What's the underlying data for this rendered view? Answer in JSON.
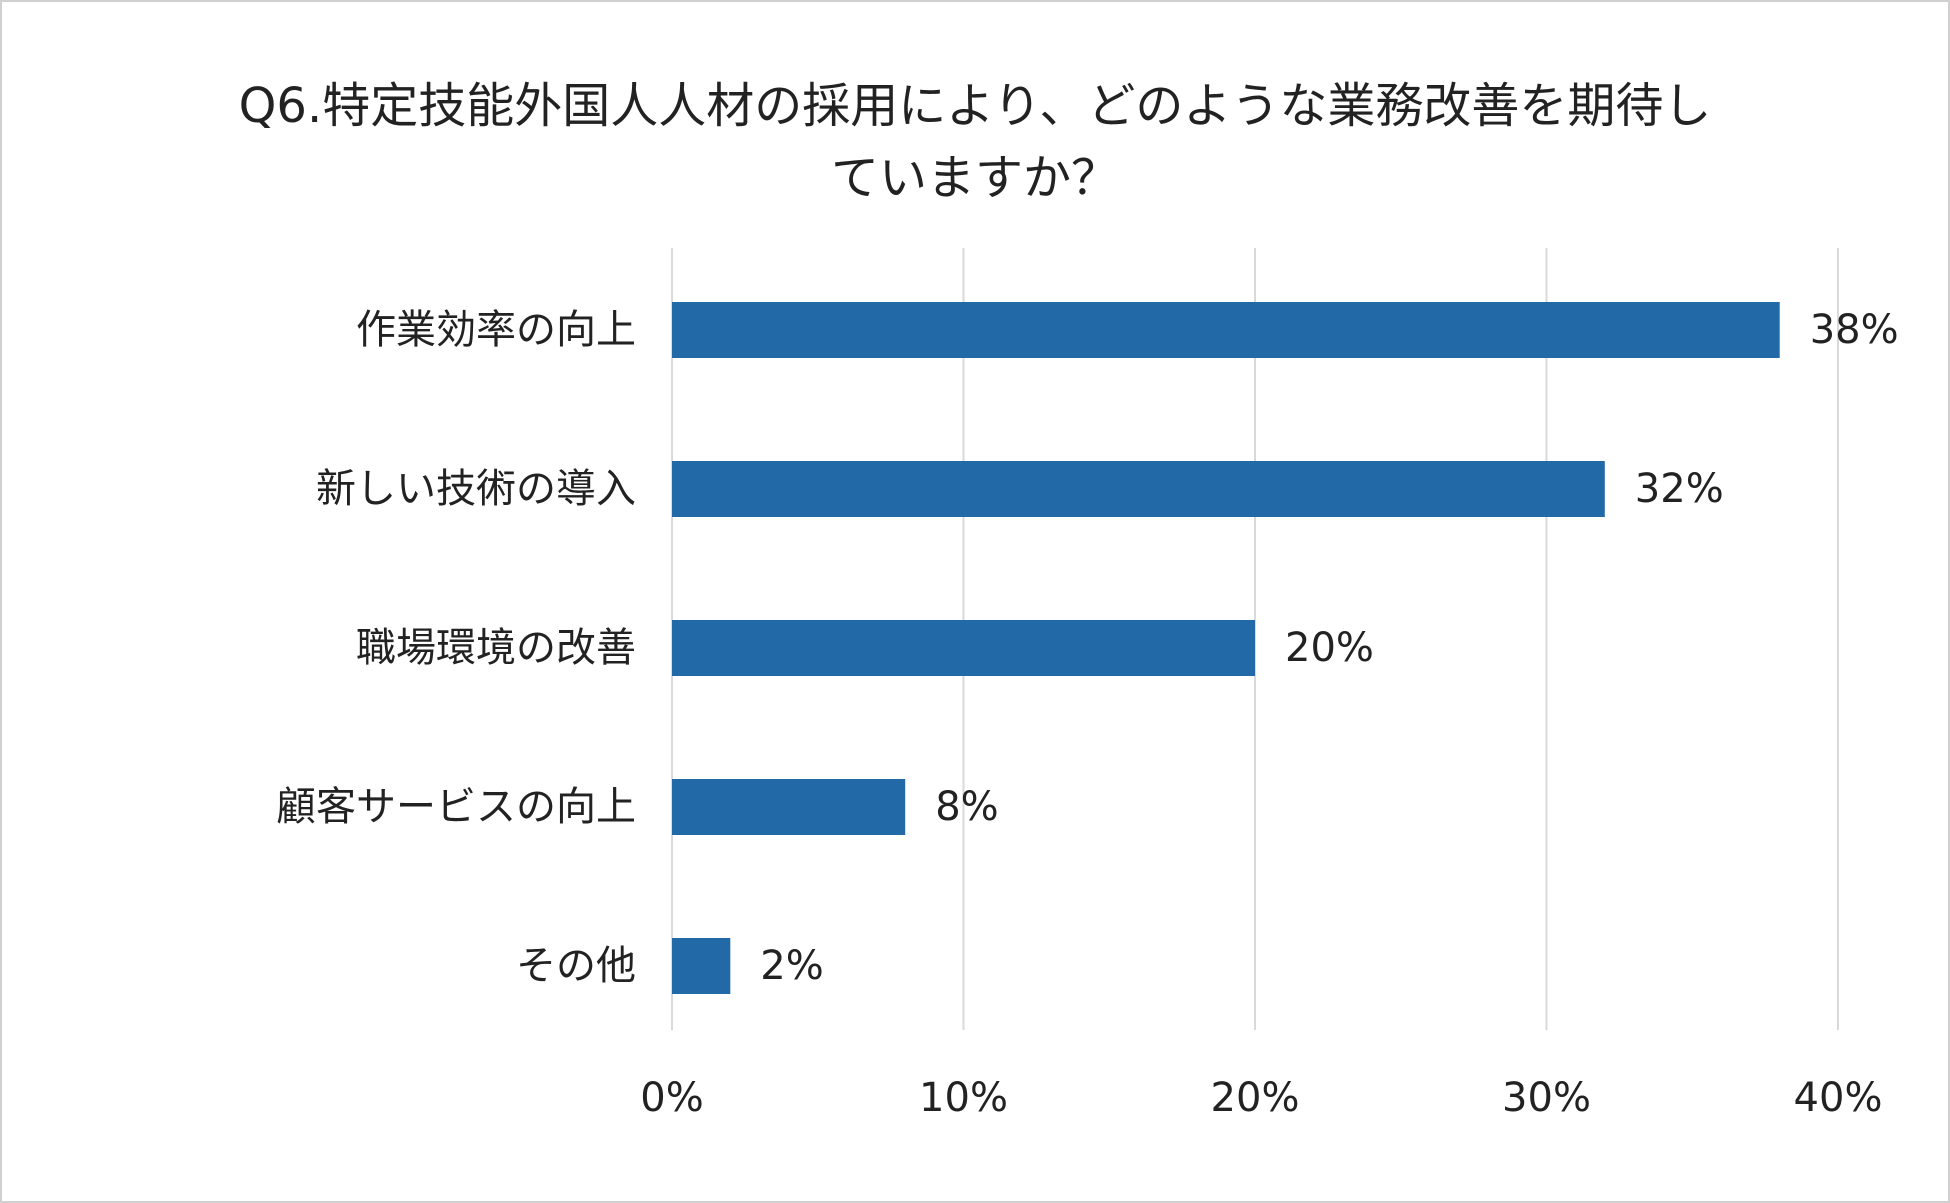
{
  "chart_data": {
    "type": "bar",
    "orientation": "horizontal",
    "title": "Q6.特定技能外国人人材の採用により、どのような業務改善を期待していますか？",
    "title_lines": [
      "Q6.特定技能外国人人材の採用により、どのような業務改善を期待し",
      "ていますか？"
    ],
    "categories": [
      "作業効率の向上",
      "新しい技術の導入",
      "職場環境の改善",
      "顧客サービスの向上",
      "その他"
    ],
    "values": [
      38,
      32,
      20,
      8,
      2
    ],
    "value_labels": [
      "38%",
      "32%",
      "20%",
      "8%",
      "2%"
    ],
    "xlim": [
      0,
      40
    ],
    "xticks": [
      0,
      10,
      20,
      30,
      40
    ],
    "xtick_labels": [
      "0%",
      "10%",
      "20%",
      "30%",
      "40%"
    ],
    "grid": "vertical",
    "legend": "none",
    "bar_color": "#2269a8",
    "grid_color": "#d9d9d9"
  }
}
